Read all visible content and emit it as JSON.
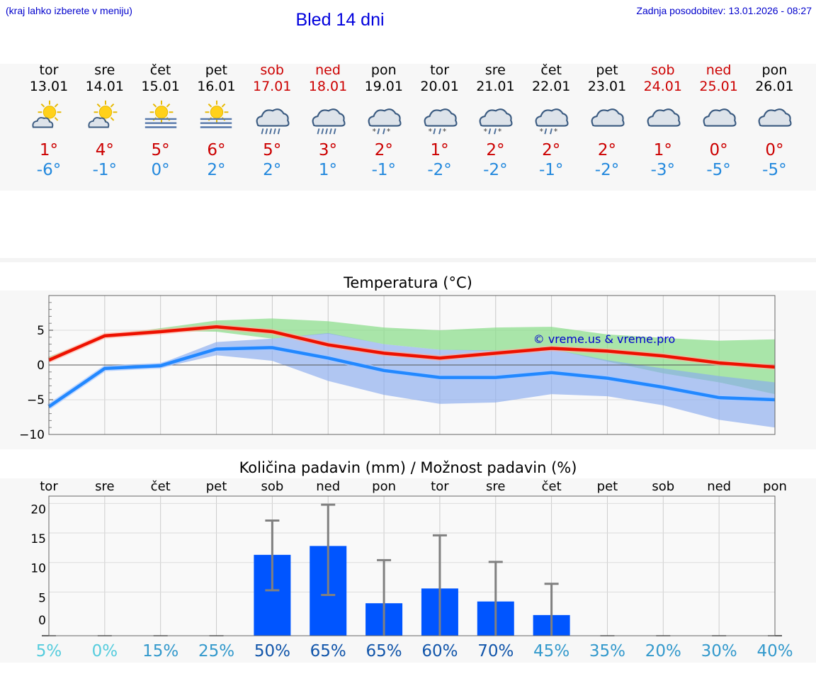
{
  "header": {
    "hint": "(kraj lahko izberete v meniju)",
    "title": "Bled 14 dni",
    "updated": "Zadnja posodobitev: 13.01.2026 - 08:27"
  },
  "days": [
    {
      "name": "tor",
      "date": "13.01",
      "weekend": false,
      "icon": "sun-cloud-icon",
      "tmax": "1°",
      "tmin": "-6°"
    },
    {
      "name": "sre",
      "date": "14.01",
      "weekend": false,
      "icon": "sun-cloud-icon",
      "tmax": "4°",
      "tmin": "-1°"
    },
    {
      "name": "čet",
      "date": "15.01",
      "weekend": false,
      "icon": "sun-fog-icon",
      "tmax": "5°",
      "tmin": "0°"
    },
    {
      "name": "pet",
      "date": "16.01",
      "weekend": false,
      "icon": "sun-fog-icon",
      "tmax": "6°",
      "tmin": "2°"
    },
    {
      "name": "sob",
      "date": "17.01",
      "weekend": true,
      "icon": "rain-cloud-icon",
      "tmax": "5°",
      "tmin": "2°"
    },
    {
      "name": "ned",
      "date": "18.01",
      "weekend": true,
      "icon": "rain-cloud-icon",
      "tmax": "3°",
      "tmin": "1°"
    },
    {
      "name": "pon",
      "date": "19.01",
      "weekend": false,
      "icon": "sleet-cloud-icon",
      "tmax": "2°",
      "tmin": "-1°"
    },
    {
      "name": "tor",
      "date": "20.01",
      "weekend": false,
      "icon": "sleet-cloud-icon",
      "tmax": "1°",
      "tmin": "-2°"
    },
    {
      "name": "sre",
      "date": "21.01",
      "weekend": false,
      "icon": "sleet-cloud-icon",
      "tmax": "2°",
      "tmin": "-2°"
    },
    {
      "name": "čet",
      "date": "22.01",
      "weekend": false,
      "icon": "sleet-cloud-icon",
      "tmax": "2°",
      "tmin": "-1°"
    },
    {
      "name": "pet",
      "date": "23.01",
      "weekend": false,
      "icon": "cloud-icon",
      "tmax": "2°",
      "tmin": "-2°"
    },
    {
      "name": "sob",
      "date": "24.01",
      "weekend": true,
      "icon": "cloud-icon",
      "tmax": "1°",
      "tmin": "-3°"
    },
    {
      "name": "ned",
      "date": "25.01",
      "weekend": true,
      "icon": "cloud-icon",
      "tmax": "0°",
      "tmin": "-5°"
    },
    {
      "name": "pon",
      "date": "26.01",
      "weekend": false,
      "icon": "cloud-icon",
      "tmax": "0°",
      "tmin": "-5°"
    }
  ],
  "colors": {
    "max": "#ee1100",
    "min": "#2288ff",
    "max_band": "#88dd88",
    "min_band": "#88aaee",
    "precip": "#0055ff",
    "err": "#808080"
  },
  "chart_data": [
    {
      "type": "line",
      "title": "Temperatura (°C)",
      "watermark": "© vreme.us & vreme.pro",
      "x": [
        0,
        1,
        2,
        3,
        4,
        5,
        6,
        7,
        8,
        9,
        10,
        11,
        12,
        13
      ],
      "ylim": [
        -10,
        10
      ],
      "yticks": [
        5,
        0,
        -5,
        -10
      ],
      "ytick_labels": [
        "5",
        "0",
        "−5",
        "−10"
      ],
      "series": [
        {
          "name": "max",
          "values": [
            0.7,
            4.2,
            4.8,
            5.5,
            4.8,
            2.9,
            1.7,
            1.0,
            1.7,
            2.4,
            2.0,
            1.3,
            0.3,
            -0.3
          ],
          "band_low": [
            0.5,
            4.2,
            4.9,
            4.8,
            3.8,
            4.5,
            3.0,
            2.2,
            2.0,
            2.3,
            0.5,
            -1.2,
            -2.5,
            -4.2
          ],
          "band_high": [
            1.2,
            4.2,
            5.3,
            6.4,
            6.7,
            6.3,
            5.4,
            5.0,
            5.4,
            5.5,
            4.4,
            3.9,
            3.5,
            3.7
          ]
        },
        {
          "name": "min",
          "values": [
            -6.0,
            -0.5,
            -0.1,
            2.3,
            2.5,
            1.0,
            -0.8,
            -1.8,
            -1.8,
            -1.1,
            -1.9,
            -3.2,
            -4.7,
            -5.0
          ],
          "band_low": [
            -6.3,
            -0.6,
            -0.4,
            1.4,
            0.6,
            -2.3,
            -4.3,
            -5.6,
            -5.4,
            -4.2,
            -4.5,
            -5.8,
            -7.9,
            -9.0
          ],
          "band_high": [
            -5.8,
            -0.4,
            0.2,
            3.3,
            3.8,
            4.6,
            3.0,
            2.2,
            2.1,
            2.3,
            0.7,
            -0.5,
            -1.6,
            -2.5
          ]
        }
      ]
    },
    {
      "type": "bar",
      "title": "Količina padavin (mm) / Možnost padavin (%)",
      "categories": [
        "tor",
        "sre",
        "čet",
        "pet",
        "sob",
        "ned",
        "pon",
        "tor",
        "sre",
        "čet",
        "pet",
        "sob",
        "ned",
        "pon"
      ],
      "values": [
        0,
        0,
        0,
        0,
        12.5,
        14.0,
        4.3,
        6.8,
        4.6,
        2.3,
        0,
        0,
        0,
        0
      ],
      "err_low": [
        0,
        0,
        0,
        0,
        6.5,
        5.7,
        0,
        0,
        0,
        0,
        0,
        0,
        0,
        0
      ],
      "err_high": [
        0,
        0,
        0,
        0,
        18.3,
        21.0,
        11.6,
        15.8,
        11.3,
        7.6,
        0,
        0,
        0,
        0
      ],
      "chance": [
        "5%",
        "0%",
        "15%",
        "25%",
        "50%",
        "65%",
        "65%",
        "60%",
        "70%",
        "45%",
        "35%",
        "20%",
        "30%",
        "40%"
      ],
      "chance_colors": [
        "#55ccdd",
        "#55ccdd",
        "#3399cc",
        "#3399cc",
        "#1155aa",
        "#1155aa",
        "#1155aa",
        "#1155aa",
        "#1155aa",
        "#3399cc",
        "#3399cc",
        "#3399cc",
        "#3399cc",
        "#3399cc"
      ],
      "ylim": [
        0,
        22
      ],
      "yticks": [
        20,
        15,
        10,
        5,
        0
      ],
      "ytick_labels": [
        "20",
        "15",
        "10",
        "5",
        "0"
      ]
    }
  ]
}
